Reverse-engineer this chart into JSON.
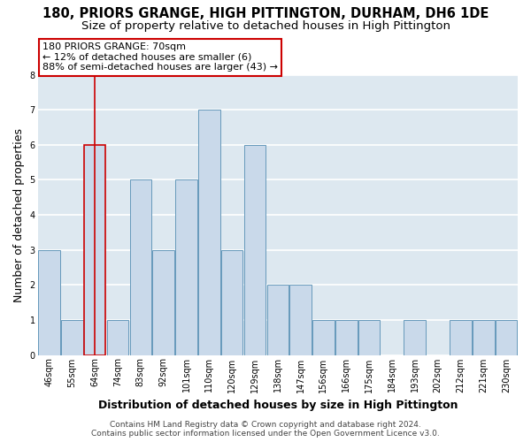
{
  "title": "180, PRIORS GRANGE, HIGH PITTINGTON, DURHAM, DH6 1DE",
  "subtitle": "Size of property relative to detached houses in High Pittington",
  "xlabel": "Distribution of detached houses by size in High Pittington",
  "ylabel": "Number of detached properties",
  "bin_labels": [
    "46sqm",
    "55sqm",
    "64sqm",
    "74sqm",
    "83sqm",
    "92sqm",
    "101sqm",
    "110sqm",
    "120sqm",
    "129sqm",
    "138sqm",
    "147sqm",
    "156sqm",
    "166sqm",
    "175sqm",
    "184sqm",
    "193sqm",
    "202sqm",
    "212sqm",
    "221sqm",
    "230sqm"
  ],
  "bar_heights": [
    3,
    1,
    6,
    1,
    5,
    3,
    5,
    7,
    3,
    6,
    2,
    2,
    1,
    1,
    1,
    0,
    1,
    0,
    1,
    1,
    1
  ],
  "bar_color": "#c9d9ea",
  "bar_edgecolor": "#6699bb",
  "highlight_bar_index": 2,
  "highlight_edgecolor": "#cc0000",
  "annotation_line1": "180 PRIORS GRANGE: 70sqm",
  "annotation_line2": "← 12% of detached houses are smaller (6)",
  "annotation_line3": "88% of semi-detached houses are larger (43) →",
  "annotation_box_edgecolor": "#cc0000",
  "ylim": [
    0,
    8
  ],
  "yticks": [
    0,
    1,
    2,
    3,
    4,
    5,
    6,
    7,
    8
  ],
  "footer1": "Contains HM Land Registry data © Crown copyright and database right 2024.",
  "footer2": "Contains public sector information licensed under the Open Government Licence v3.0.",
  "fig_bg_color": "#ffffff",
  "plot_bg_color": "#dde8f0",
  "grid_color": "#ffffff",
  "title_fontsize": 10.5,
  "subtitle_fontsize": 9.5,
  "axis_label_fontsize": 9,
  "tick_fontsize": 7,
  "annotation_fontsize": 8,
  "footer_fontsize": 6.5
}
